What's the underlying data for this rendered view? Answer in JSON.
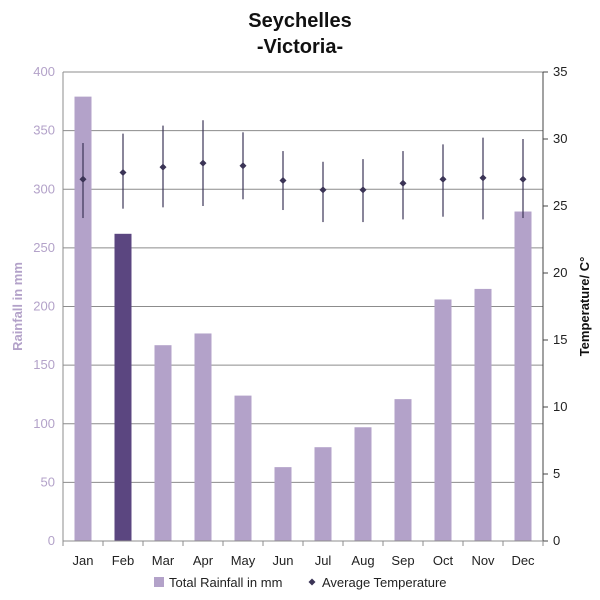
{
  "chart_data": {
    "type": "bar",
    "title": "Seychelles",
    "subtitle": "-Victoria-",
    "categories": [
      "Jan",
      "Feb",
      "Mar",
      "Apr",
      "May",
      "Jun",
      "Jul",
      "Aug",
      "Sep",
      "Oct",
      "Nov",
      "Dec"
    ],
    "rainfall": {
      "name": "Total Rainfall in mm",
      "values": [
        379,
        262,
        167,
        177,
        124,
        63,
        80,
        97,
        121,
        206,
        215,
        281
      ],
      "color": "#b3a2c9",
      "highlight_color": "#5b4680",
      "highlight_index": 1
    },
    "temperature": {
      "name": "Average Temperature",
      "type": "scatter",
      "values": [
        27.0,
        27.5,
        27.9,
        28.2,
        28.0,
        26.9,
        26.2,
        26.2,
        26.7,
        27.0,
        27.1,
        27.0
      ],
      "min": [
        24.1,
        24.8,
        24.9,
        25.0,
        25.5,
        24.7,
        23.8,
        23.8,
        24.0,
        24.2,
        24.0,
        24.1
      ],
      "max": [
        29.7,
        30.4,
        31.0,
        31.4,
        30.5,
        29.1,
        28.3,
        28.5,
        29.1,
        29.6,
        30.1,
        30.0
      ],
      "color": "#3b3456"
    },
    "y_left": {
      "label": "Rainfall  in mm",
      "min": 0,
      "max": 400,
      "step": 50,
      "color": "#b3a2c9"
    },
    "y_right": {
      "label": "Temperature/ C°",
      "min": 0,
      "max": 35,
      "step": 5
    },
    "grid": true,
    "legend_position": "bottom"
  }
}
